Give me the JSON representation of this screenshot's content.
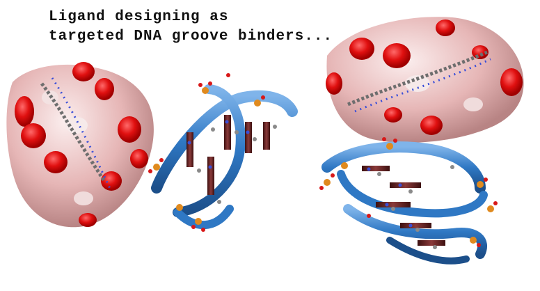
{
  "caption": {
    "line1": "Ligand designing as",
    "line2": "targeted DNA groove binders..."
  },
  "colors": {
    "surface_red": "#e01010",
    "surface_pink": "#e8b4b4",
    "surface_white": "#f4e6e6",
    "ribbon_blue": "#2f78c4",
    "ribbon_dark": "#1c4f8a",
    "phosphate_orange": "#e08a1e",
    "oxygen_red": "#d81818",
    "nitrogen_blue": "#3a4fd8",
    "carbon_gray": "#8a8a8a",
    "base_brown": "#6a2626"
  }
}
